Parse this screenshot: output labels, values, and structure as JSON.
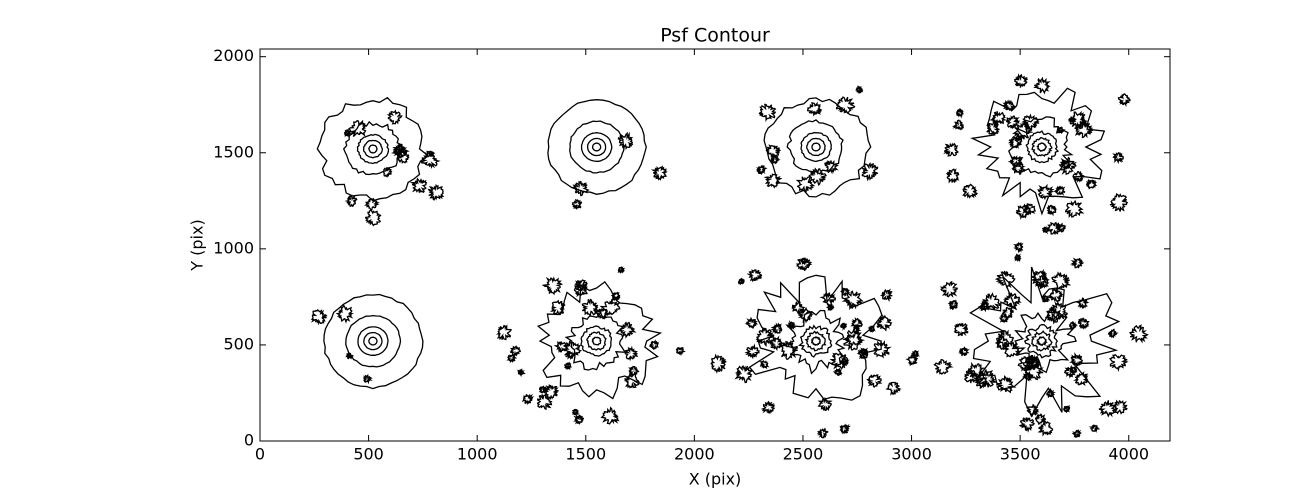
{
  "chart_data": {
    "type": "contour",
    "title": "Psf Contour",
    "xlabel": "X (pix)",
    "ylabel": "Y (pix)",
    "x": [
      520,
      1550,
      2560,
      3600,
      520,
      1550,
      2560,
      3600
    ],
    "y": [
      1520,
      1530,
      1530,
      1530,
      520,
      520,
      520,
      520
    ],
    "color": "#000000",
    "xlim": [
      0,
      4190
    ],
    "ylim": [
      0,
      2040
    ],
    "xticks": [
      0,
      500,
      1000,
      1500,
      2000,
      2500,
      3000,
      3500,
      4000
    ],
    "yticks": [
      0,
      500,
      1000,
      1500,
      2000
    ]
  }
}
